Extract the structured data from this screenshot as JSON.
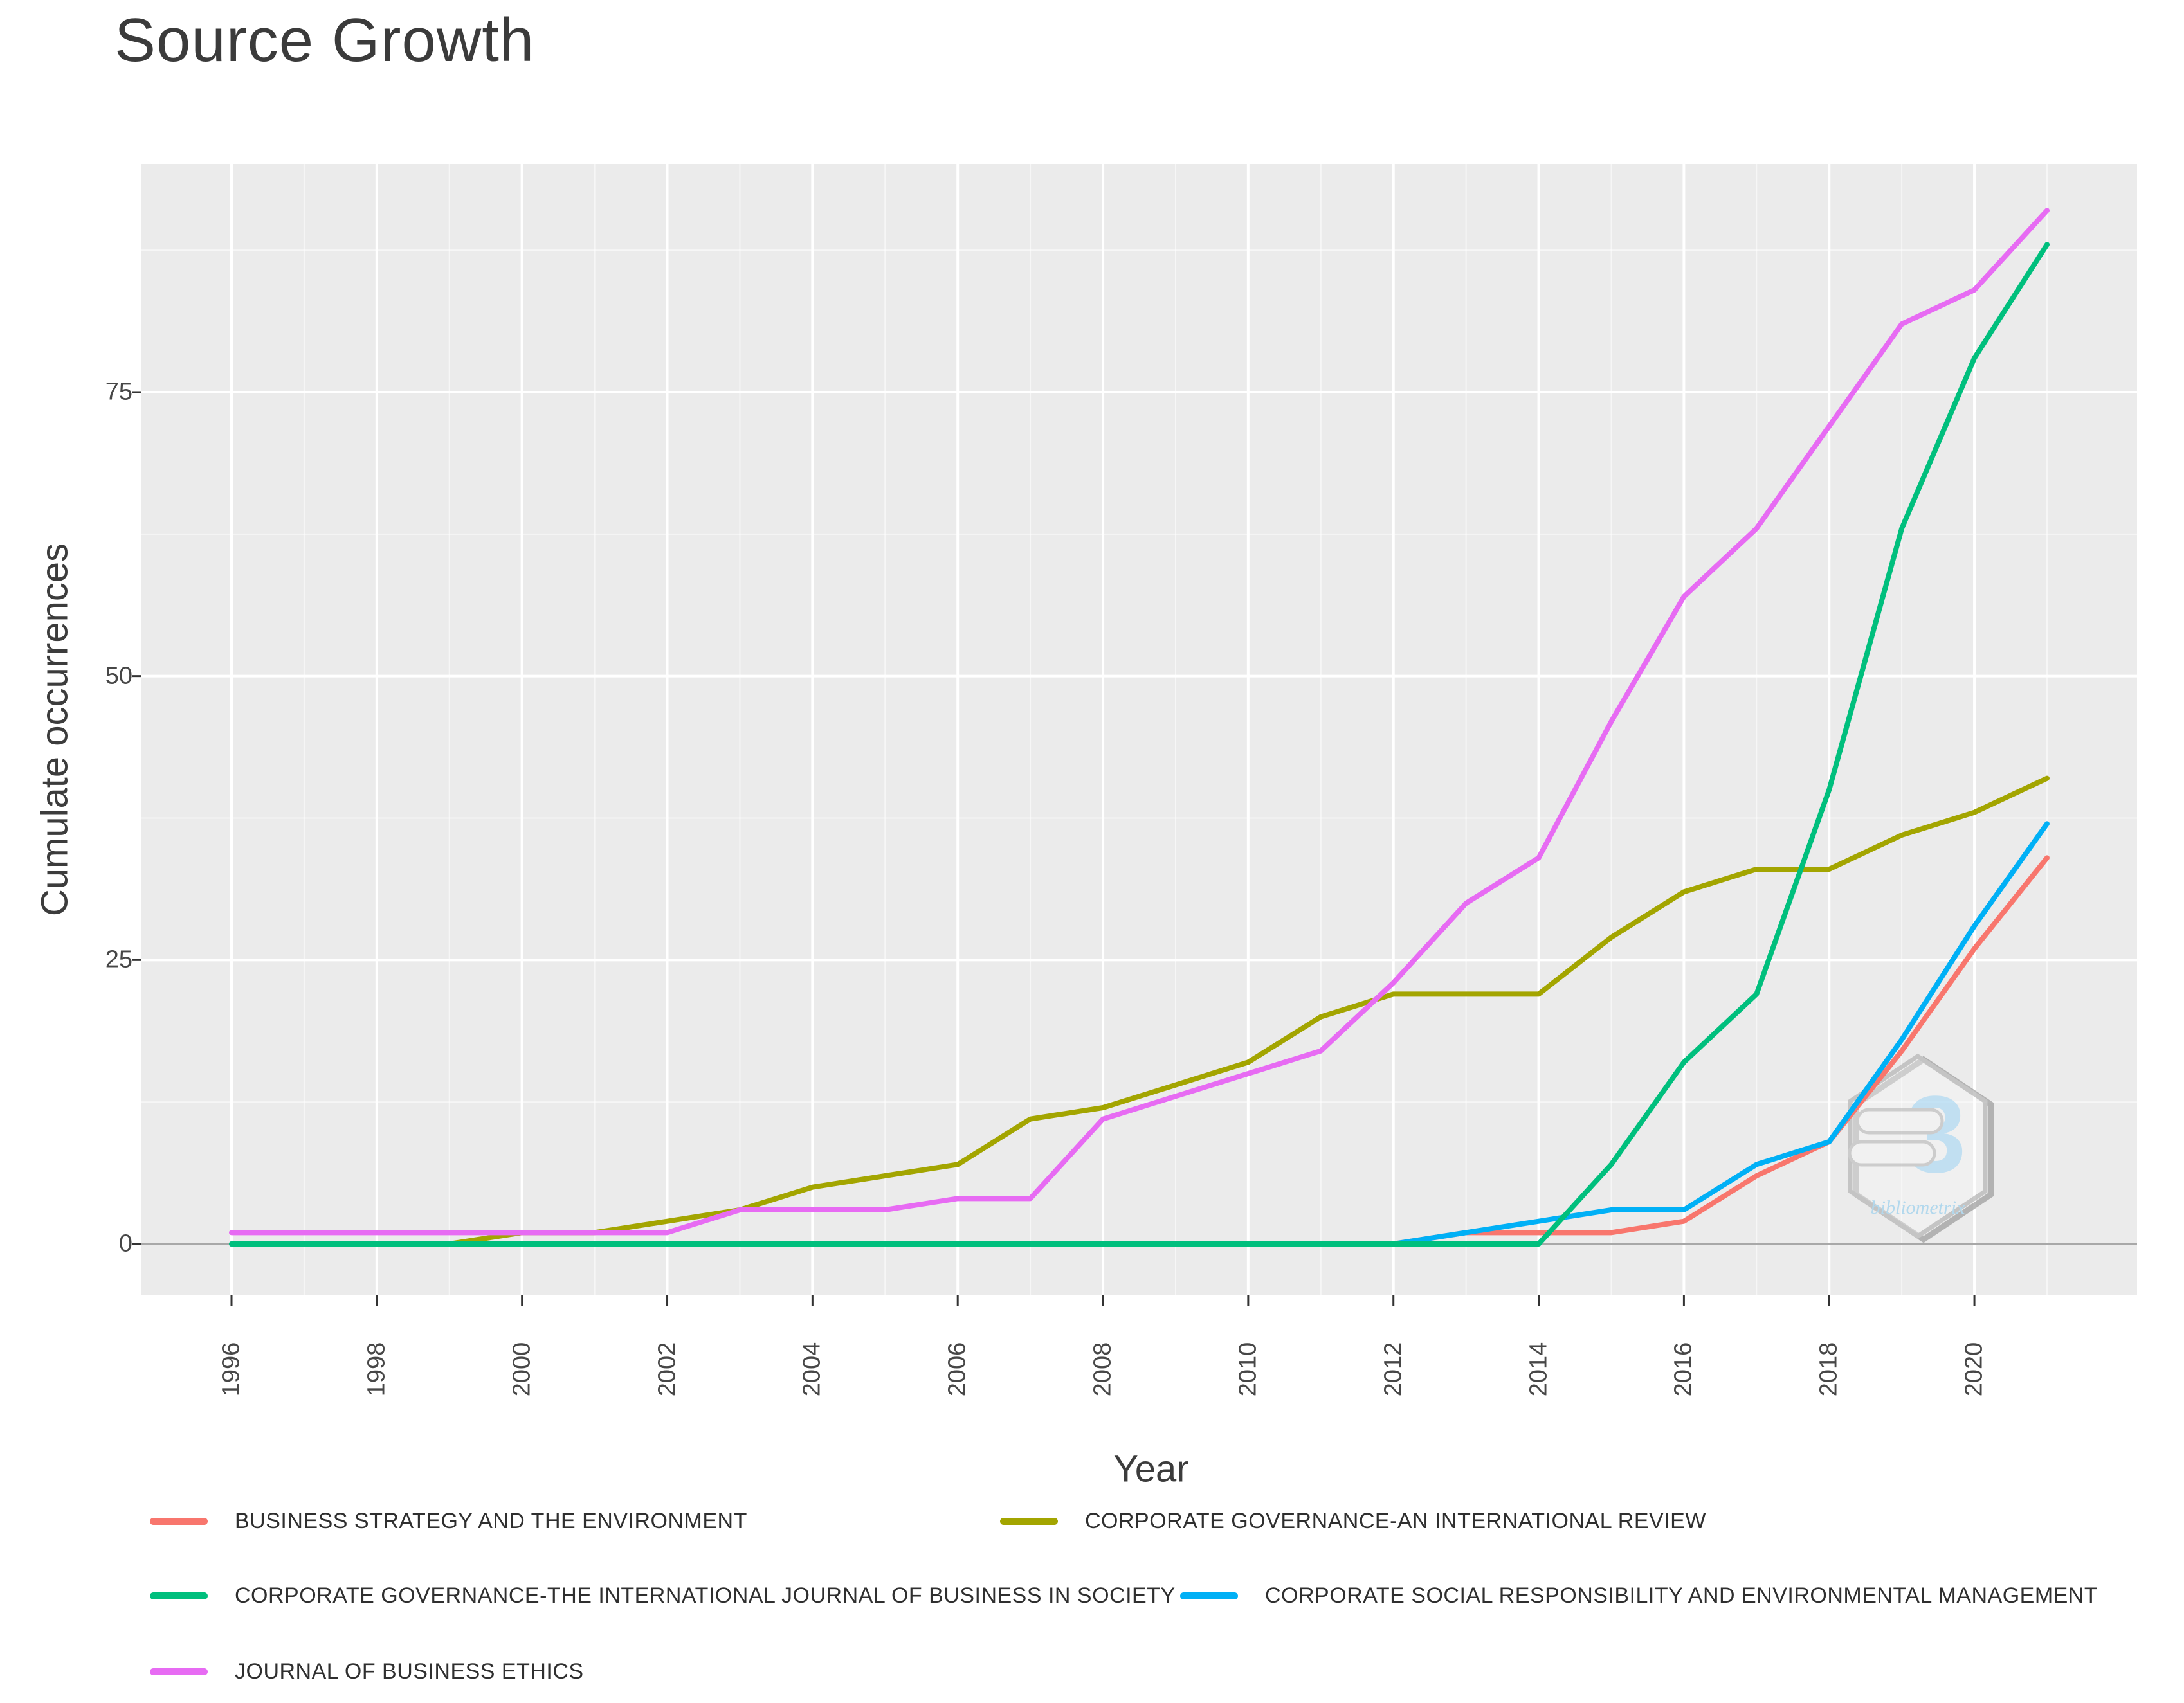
{
  "title": "Source Growth",
  "axes": {
    "x_label": "Year",
    "y_label": "Cumulate occurrences",
    "y_ticks": [
      0,
      25,
      50,
      75
    ],
    "x_ticks": [
      1996,
      1998,
      2000,
      2002,
      2004,
      2006,
      2008,
      2010,
      2012,
      2014,
      2016,
      2018,
      2020
    ]
  },
  "chart_data": {
    "type": "line",
    "title": "Source Growth",
    "xlabel": "Year",
    "ylabel": "Cumulate occurrences",
    "x": [
      1996,
      1997,
      1998,
      1999,
      2000,
      2001,
      2002,
      2003,
      2004,
      2005,
      2006,
      2007,
      2008,
      2009,
      2010,
      2011,
      2012,
      2013,
      2014,
      2015,
      2016,
      2017,
      2018,
      2019,
      2020,
      2021
    ],
    "xlim": [
      1996,
      2021
    ],
    "ylim": [
      0,
      91
    ],
    "grid": true,
    "legend_position": "bottom",
    "series": [
      {
        "name": "BUSINESS STRATEGY AND THE ENVIRONMENT",
        "color": "#F8766D",
        "values": [
          0,
          0,
          0,
          0,
          0,
          0,
          0,
          0,
          0,
          0,
          0,
          0,
          0,
          0,
          0,
          0,
          0,
          1,
          1,
          1,
          2,
          6,
          9,
          17,
          26,
          34
        ]
      },
      {
        "name": "CORPORATE GOVERNANCE-AN INTERNATIONAL REVIEW",
        "color": "#A3A500",
        "values": [
          0,
          0,
          0,
          0,
          1,
          1,
          2,
          3,
          5,
          6,
          7,
          11,
          12,
          14,
          16,
          20,
          22,
          22,
          22,
          27,
          31,
          33,
          33,
          36,
          38,
          41
        ]
      },
      {
        "name": "CORPORATE SOCIAL RESPONSIBILITY AND ENVIRONMENTAL MANAGEMENT",
        "color": "#00B0F6",
        "values": [
          0,
          0,
          0,
          0,
          0,
          0,
          0,
          0,
          0,
          0,
          0,
          0,
          0,
          0,
          0,
          0,
          0,
          1,
          2,
          3,
          3,
          7,
          9,
          18,
          28,
          37
        ]
      },
      {
        "name": "CORPORATE GOVERNANCE-THE INTERNATIONAL JOURNAL OF BUSINESS IN SOCIETY",
        "color": "#00BF7D",
        "values": [
          0,
          0,
          0,
          0,
          0,
          0,
          0,
          0,
          0,
          0,
          0,
          0,
          0,
          0,
          0,
          0,
          0,
          0,
          0,
          7,
          16,
          22,
          40,
          63,
          78,
          88
        ]
      },
      {
        "name": "JOURNAL OF BUSINESS ETHICS",
        "color": "#E76BF3",
        "values": [
          1,
          1,
          1,
          1,
          1,
          1,
          1,
          3,
          3,
          3,
          4,
          4,
          11,
          13,
          15,
          17,
          23,
          30,
          34,
          46,
          57,
          63,
          72,
          81,
          84,
          91
        ]
      }
    ]
  },
  "legend": {
    "items": [
      {
        "label": "BUSINESS STRATEGY AND THE ENVIRONMENT",
        "color": "#F8766D"
      },
      {
        "label": "CORPORATE GOVERNANCE-AN INTERNATIONAL REVIEW",
        "color": "#A3A500"
      },
      {
        "label": "CORPORATE GOVERNANCE-THE INTERNATIONAL JOURNAL OF BUSINESS IN SOCIETY",
        "color": "#00BF7D"
      },
      {
        "label": "CORPORATE SOCIAL RESPONSIBILITY AND ENVIRONMENTAL MANAGEMENT",
        "color": "#00B0F6"
      },
      {
        "label": "JOURNAL OF BUSINESS ETHICS",
        "color": "#E76BF3"
      }
    ]
  },
  "watermark": {
    "glyph": "3",
    "text": "bibliometrix"
  },
  "colors": {
    "panel_bg": "#EBEBEB",
    "grid_major": "#FFFFFF",
    "zero_line": "#A8A8A8",
    "tick": "#333333"
  }
}
